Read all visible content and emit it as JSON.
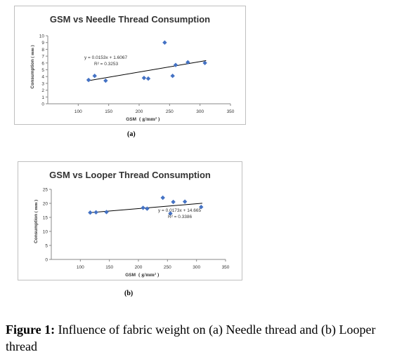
{
  "chart_data": [
    {
      "type": "scatter",
      "title": "GSM vs Needle Thread Consumption",
      "xlabel": "GSM",
      "xlabel_unit": "( g/mm² )",
      "ylabel": "Consumption",
      "ylabel_unit": "( mm )",
      "xlim": [
        50,
        350
      ],
      "ylim": [
        0,
        10
      ],
      "xticks": [
        "100",
        "150",
        "200",
        "250",
        "300",
        "350"
      ],
      "yticks": [
        "0",
        "1",
        "2",
        "3",
        "4",
        "5",
        "6",
        "7",
        "8",
        "9",
        "10"
      ],
      "grid": false,
      "points": [
        [
          117,
          3.5
        ],
        [
          127,
          4.1
        ],
        [
          145,
          3.4
        ],
        [
          208,
          3.8
        ],
        [
          215,
          3.7
        ],
        [
          242,
          9.0
        ],
        [
          255,
          4.1
        ],
        [
          260,
          5.7
        ],
        [
          280,
          6.1
        ],
        [
          308,
          6.0
        ]
      ],
      "trendline": {
        "slope": 0.0153,
        "intercept": 1.6067,
        "x_range": [
          115,
          310
        ]
      },
      "equation": "y = 0.0153x + 1.6067",
      "r_squared": "R² = 0.3253",
      "marker_color": "#4472C4"
    },
    {
      "type": "scatter",
      "title": "GSM vs Looper Thread Consumption",
      "xlabel": "GSM",
      "xlabel_unit": "( g/mm² )",
      "ylabel": "Consumption",
      "ylabel_unit": "( mm )",
      "xlim": [
        50,
        350
      ],
      "ylim": [
        0,
        25
      ],
      "xticks": [
        "100",
        "150",
        "200",
        "250",
        "300",
        "350"
      ],
      "yticks": [
        "0",
        "5",
        "10",
        "15",
        "20",
        "25"
      ],
      "grid": false,
      "points": [
        [
          117,
          16.7
        ],
        [
          127,
          16.8
        ],
        [
          145,
          16.9
        ],
        [
          208,
          18.4
        ],
        [
          215,
          18.1
        ],
        [
          242,
          22.0
        ],
        [
          255,
          16.4
        ],
        [
          260,
          20.5
        ],
        [
          280,
          20.6
        ],
        [
          308,
          18.7
        ]
      ],
      "trendline": {
        "slope": 0.0173,
        "intercept": 14.665,
        "x_range": [
          115,
          310
        ]
      },
      "equation": "y = 0.0173x + 14.665",
      "r_squared": "R² = 0.3386",
      "marker_color": "#4472C4"
    }
  ],
  "sublabels": {
    "a": "(a)",
    "b": "(b)"
  },
  "caption": {
    "label": "Figure 1:",
    "text": " Influence of fabric weight on (a) Needle thread and (b) Looper thread"
  }
}
